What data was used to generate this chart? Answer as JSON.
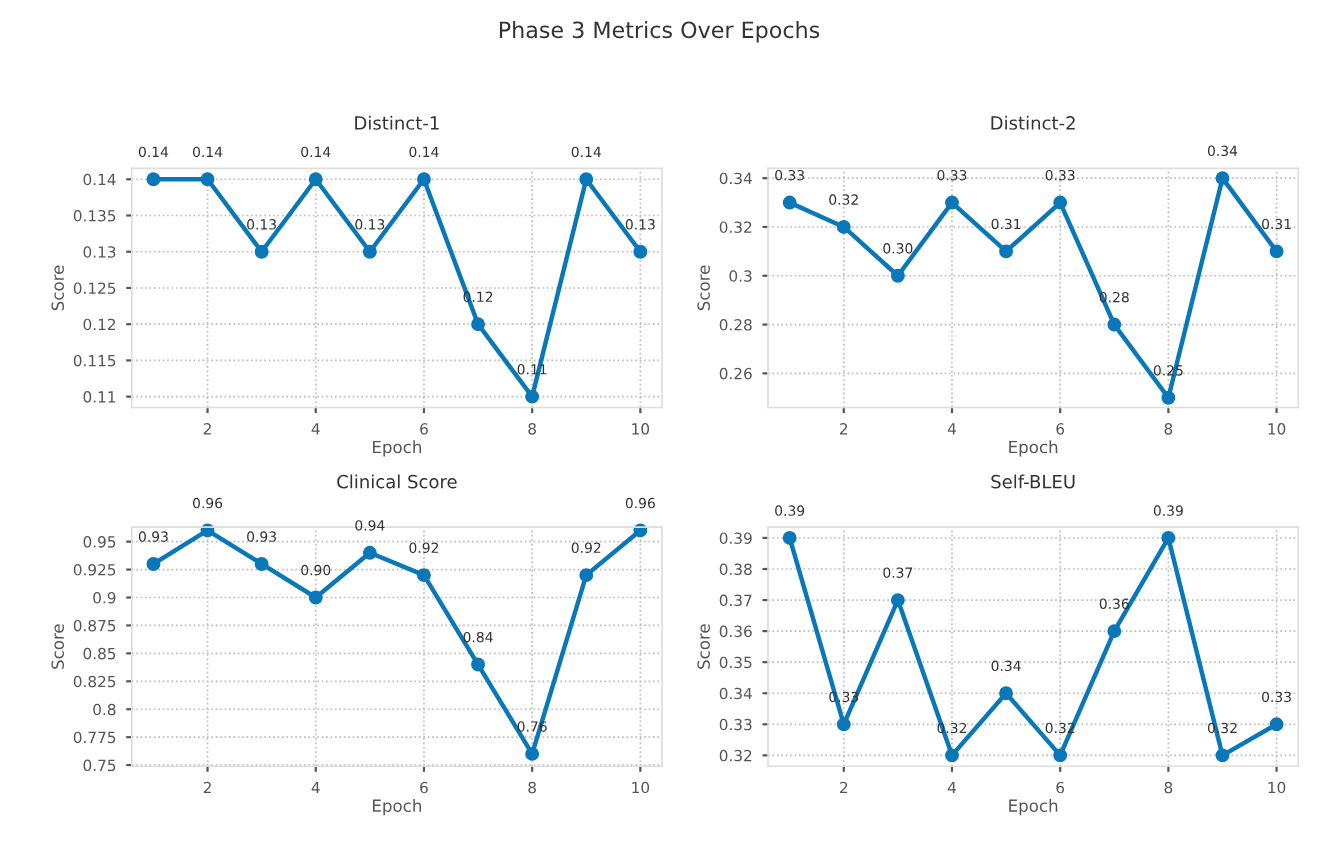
{
  "chart_data": [
    {
      "type": "line",
      "title": "Distinct-1",
      "annotations": [
        "Phase 3 Metrics Over Epochs"
      ],
      "xlabel": "Epoch",
      "ylabel": "Score",
      "x": [
        1,
        2,
        3,
        4,
        5,
        6,
        7,
        8,
        9,
        10
      ],
      "series": [
        {
          "color": "#0a78b8",
          "values": [
            0.14,
            0.14,
            0.13,
            0.14,
            0.13,
            0.14,
            0.12,
            0.11,
            0.14,
            0.13
          ]
        }
      ],
      "xlim": [
        0.6,
        10.4
      ],
      "xticks": [
        2,
        4,
        6,
        8,
        10
      ],
      "ylim": [
        0.1085,
        0.1415
      ],
      "yticks": [
        0.11,
        0.115,
        0.12,
        0.125,
        0.13,
        0.135,
        0.14
      ],
      "grid": true,
      "marker": "circle",
      "line_style": "solid",
      "data_labels": true
    },
    {
      "type": "line",
      "title": "Distinct-2",
      "xlabel": "Epoch",
      "ylabel": "Score",
      "x": [
        1,
        2,
        3,
        4,
        5,
        6,
        7,
        8,
        9,
        10
      ],
      "series": [
        {
          "color": "#0a78b8",
          "values": [
            0.33,
            0.32,
            0.3,
            0.33,
            0.31,
            0.33,
            0.28,
            0.25,
            0.34,
            0.31
          ],
          "value_labels": [
            "0.33",
            "0.32",
            "0.30",
            "0.33",
            "0.31",
            "0.33",
            "0.28",
            "0.25",
            "0.34",
            "0.31"
          ]
        }
      ],
      "xlim": [
        0.6,
        10.4
      ],
      "xticks": [
        2,
        4,
        6,
        8,
        10
      ],
      "ylim": [
        0.246,
        0.344
      ],
      "yticks": [
        0.26,
        0.28,
        0.3,
        0.32,
        0.34
      ],
      "grid": true,
      "marker": "circle",
      "line_style": "solid"
    },
    {
      "type": "line",
      "title": "Clinical Score",
      "xlabel": "Epoch",
      "ylabel": "Score",
      "x": [
        1,
        2,
        3,
        4,
        5,
        6,
        7,
        8,
        9,
        10
      ],
      "series": [
        {
          "color": "#0a78b8",
          "values": [
            0.93,
            0.96,
            0.93,
            0.9,
            0.94,
            0.92,
            0.84,
            0.76,
            0.92,
            0.96
          ],
          "value_labels": [
            "0.93",
            "0.96",
            "0.93",
            "0.90",
            "0.94",
            "0.92",
            "0.84",
            "0.76",
            "0.92",
            "0.96"
          ]
        }
      ],
      "xlim": [
        0.6,
        10.4
      ],
      "xticks": [
        2,
        4,
        6,
        8,
        10
      ],
      "ylim": [
        0.749,
        0.963
      ],
      "yticks": [
        0.75,
        0.775,
        0.8,
        0.825,
        0.85,
        0.875,
        0.9,
        0.925,
        0.95
      ],
      "grid": true,
      "marker": "circle",
      "line_style": "solid"
    },
    {
      "type": "line",
      "title": "Self-BLEU",
      "xlabel": "Epoch",
      "ylabel": "Score",
      "x": [
        1,
        2,
        3,
        4,
        5,
        6,
        7,
        8,
        9,
        10
      ],
      "series": [
        {
          "color": "#0a78b8",
          "values": [
            0.39,
            0.33,
            0.37,
            0.32,
            0.34,
            0.32,
            0.36,
            0.39,
            0.32,
            0.33
          ]
        }
      ],
      "xlim": [
        0.6,
        10.4
      ],
      "xticks": [
        2,
        4,
        6,
        8,
        10
      ],
      "ylim": [
        0.3165,
        0.3935
      ],
      "yticks": [
        0.32,
        0.33,
        0.34,
        0.35,
        0.36,
        0.37,
        0.38,
        0.39
      ],
      "grid": true,
      "marker": "circle",
      "line_style": "solid",
      "data_labels": true
    }
  ]
}
